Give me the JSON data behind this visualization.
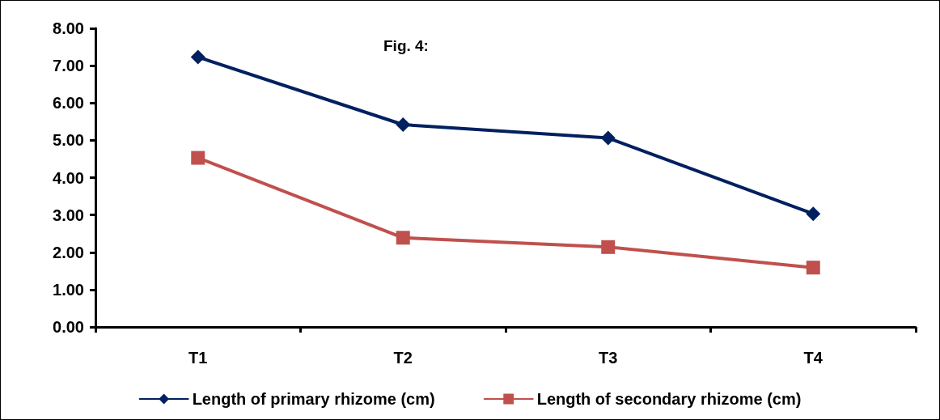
{
  "chart_data": {
    "type": "line",
    "annotations": [
      "Fig. 4:"
    ],
    "categories": [
      "T1",
      "T2",
      "T3",
      "T4"
    ],
    "series": [
      {
        "name": "Length of primary rhizome (cm)",
        "color": "#002060",
        "marker": "diamond",
        "values": [
          7.23,
          5.42,
          5.06,
          3.03
        ]
      },
      {
        "name": "Length of secondary rhizome (cm)",
        "color": "#c0504d",
        "marker": "square",
        "values": [
          4.53,
          2.39,
          2.14,
          1.59
        ]
      }
    ],
    "ylim": [
      0,
      8
    ],
    "yticks": [
      {
        "value": 0,
        "label": "0.00"
      },
      {
        "value": 1,
        "label": "1.00"
      },
      {
        "value": 2,
        "label": "2.00"
      },
      {
        "value": 3,
        "label": "3.00"
      },
      {
        "value": 4,
        "label": "4.00"
      },
      {
        "value": 5,
        "label": "5.00"
      },
      {
        "value": 6,
        "label": "6.00"
      },
      {
        "value": 7,
        "label": "7.00"
      },
      {
        "value": 8,
        "label": "8.00"
      }
    ],
    "grid": false,
    "legend": "bottom",
    "line_style": "solid"
  }
}
